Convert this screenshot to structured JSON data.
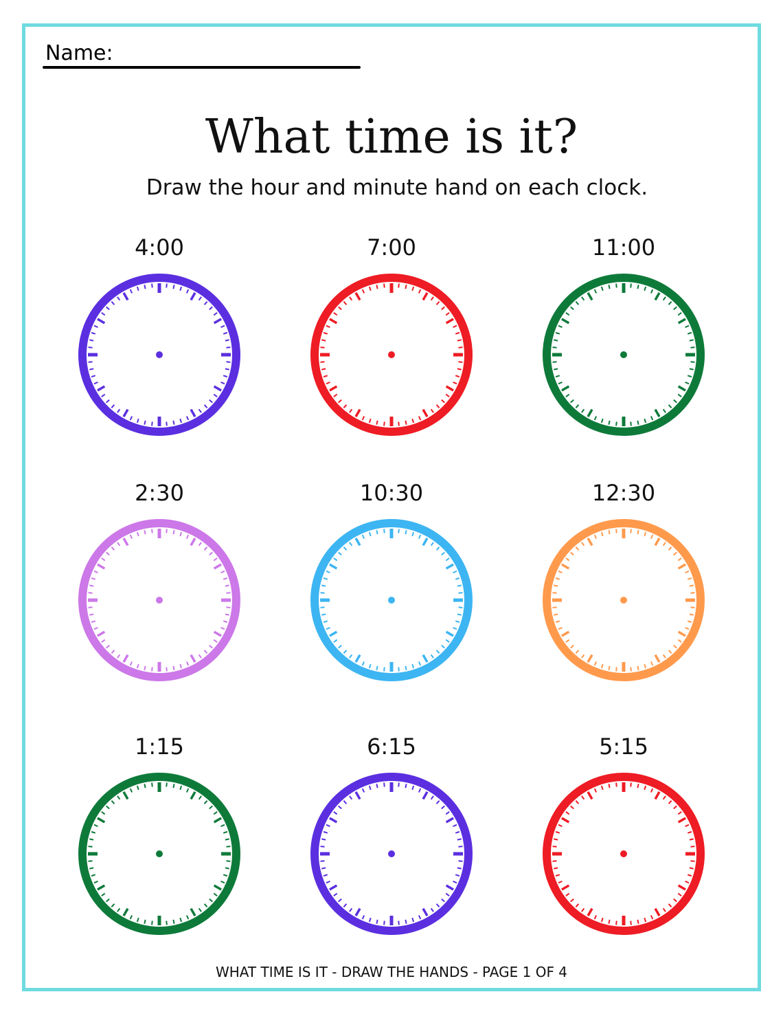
{
  "header": {
    "name_label": "Name:"
  },
  "title": "What time is it?",
  "instructions": "Draw the hour and minute hand on each clock.",
  "clocks": [
    {
      "time": "4:00",
      "color": "#5b2fe0"
    },
    {
      "time": "7:00",
      "color": "#ee1c24"
    },
    {
      "time": "11:00",
      "color": "#0e7a3a"
    },
    {
      "time": "2:30",
      "color": "#cc78e8"
    },
    {
      "time": "10:30",
      "color": "#3db5f2"
    },
    {
      "time": "12:30",
      "color": "#ff9a4d"
    },
    {
      "time": "1:15",
      "color": "#0e7a3a"
    },
    {
      "time": "6:15",
      "color": "#5b2fe0"
    },
    {
      "time": "5:15",
      "color": "#ee1c24"
    }
  ],
  "footer": "WHAT TIME IS IT - DRAW THE HANDS - PAGE 1 OF 4",
  "border_color": "#6fdbe0"
}
